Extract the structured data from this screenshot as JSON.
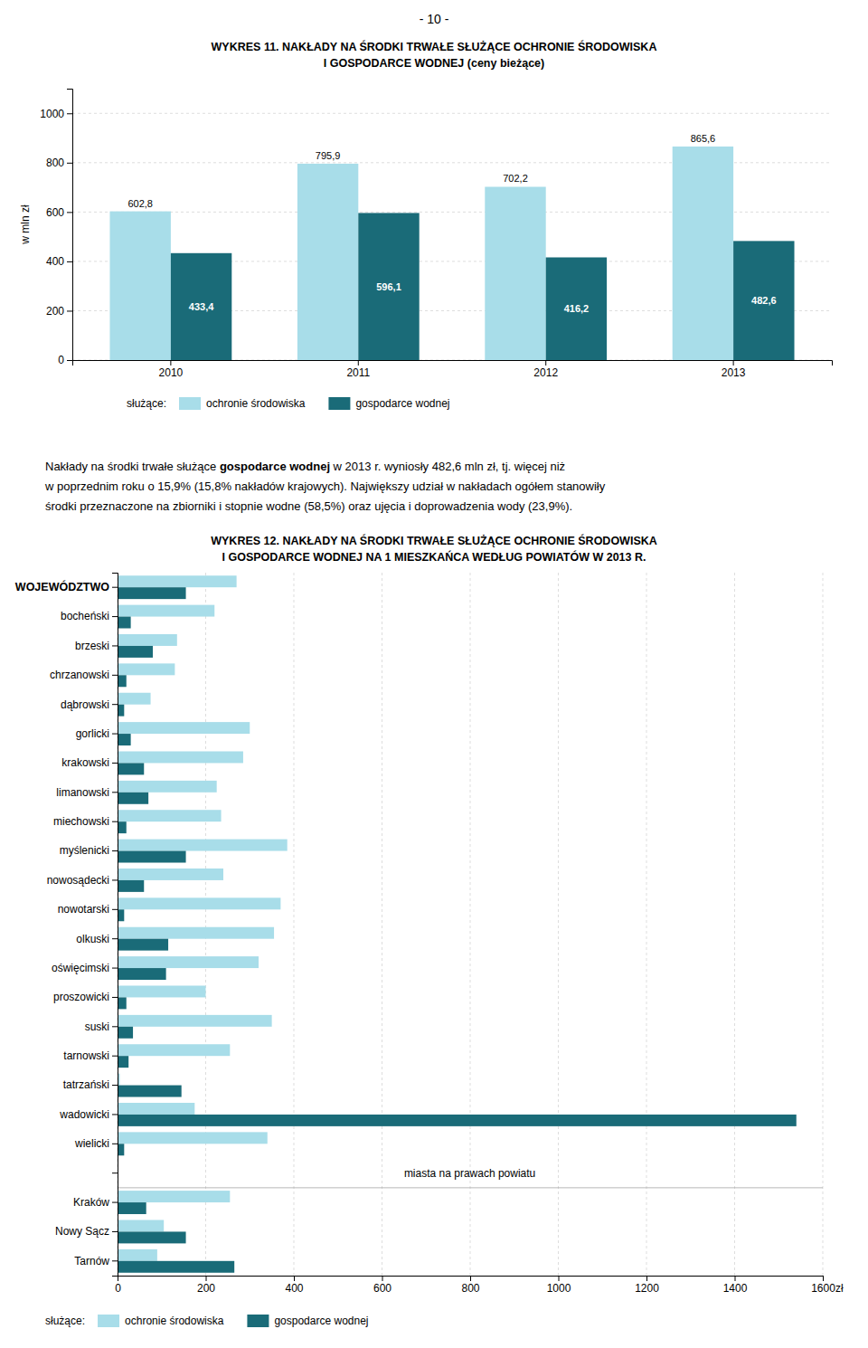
{
  "page_header": "- 10 -",
  "paragraph": [
    [
      {
        "text": "Nakłady na środki trwałe służące ",
        "bold": false
      },
      {
        "text": "gospodarce wodnej",
        "bold": true
      },
      {
        "text": " w 2013 r. wyniosły 482,6 mln zł, tj. więcej niż",
        "bold": false
      }
    ],
    [
      {
        "text": "w poprzednim roku o 15,9% (15,8% nakładów krajowych). Największy udział w nakładach ogółem stanowiły",
        "bold": false
      }
    ],
    [
      {
        "text": "środki przeznaczone na zbiorniki i stopnie wodne (58,5%) oraz ujęcia i doprowadzenia wody (23,9%).",
        "bold": false
      }
    ]
  ],
  "chart_data": [
    {
      "type": "bar",
      "title": [
        "WYKRES 11.  NAKŁADY  NA  ŚRODKI  TRWAŁE  SŁUŻĄCE  OCHRONIE  ŚRODOWISKA",
        "I  GOSPODARCE  WODNEJ  (ceny bieżące)"
      ],
      "ylabel": "w mln zł",
      "categories": [
        "2010",
        "2011",
        "2012",
        "2013"
      ],
      "series": [
        {
          "name": "ochronie środowiska",
          "color": "#a8dde9",
          "values": [
            602.8,
            795.9,
            702.2,
            865.6
          ],
          "value_labels": [
            "602,8",
            "795,9",
            "702,2",
            "865,6"
          ]
        },
        {
          "name": "gospodarce wodnej",
          "color": "#1a6b78",
          "values": [
            433.4,
            596.1,
            416.2,
            482.6
          ],
          "value_labels": [
            "433,4",
            "596,1",
            "416,2",
            "482,6"
          ]
        }
      ],
      "ylim": [
        0,
        1100
      ],
      "yticks": [
        0,
        200,
        400,
        600,
        800,
        1000
      ],
      "grid": true,
      "data_labels": true,
      "legend": "bottom",
      "legend_title": "służące:"
    },
    {
      "type": "bar",
      "orientation": "horizontal",
      "title": [
        "WYKRES 12.  NAKŁADY  NA  ŚRODKI  TRWAŁE  SŁUŻĄCE  OCHRONIE  ŚRODOWISKA",
        "I  GOSPODARCE  WODNEJ  NA  1  MIESZKAŃCA  WEDŁUG  POWIATÓW  W  2013  R."
      ],
      "xlabel": "zł",
      "categories": [
        "WOJEWÓDZTWO",
        "bocheński",
        "brzeski",
        "chrzanowski",
        "dąbrowski",
        "gorlicki",
        "krakowski",
        "limanowski",
        "miechowski",
        "myślenicki",
        "nowosądecki",
        "nowotarski",
        "olkuski",
        "oświęcimski",
        "proszowicki",
        "suski",
        "tarnowski",
        "tatrzański",
        "wadowicki",
        "wielicki",
        null,
        "Kraków",
        "Nowy Sącz",
        "Tarnów"
      ],
      "series": [
        {
          "name": "ochronie środowiska",
          "color": "#a8dde9",
          "values": [
            270,
            220,
            135,
            130,
            75,
            300,
            285,
            225,
            235,
            385,
            240,
            370,
            355,
            320,
            200,
            350,
            255,
            5,
            175,
            340,
            0,
            255,
            105,
            90
          ]
        },
        {
          "name": "gospodarce wodnej",
          "color": "#1a6b78",
          "values": [
            155,
            30,
            80,
            20,
            15,
            30,
            60,
            70,
            20,
            155,
            60,
            15,
            115,
            110,
            20,
            35,
            25,
            145,
            1540,
            15,
            0,
            65,
            155,
            265
          ]
        }
      ],
      "xlim": [
        0,
        1600
      ],
      "xticks": [
        0,
        200,
        400,
        600,
        800,
        1000,
        1200,
        1400,
        1600
      ],
      "grid": true,
      "legend": "bottom",
      "legend_title": "służące:",
      "annotations": [
        {
          "text": "miasta na prawach powiatu",
          "x": 650
        }
      ]
    }
  ]
}
